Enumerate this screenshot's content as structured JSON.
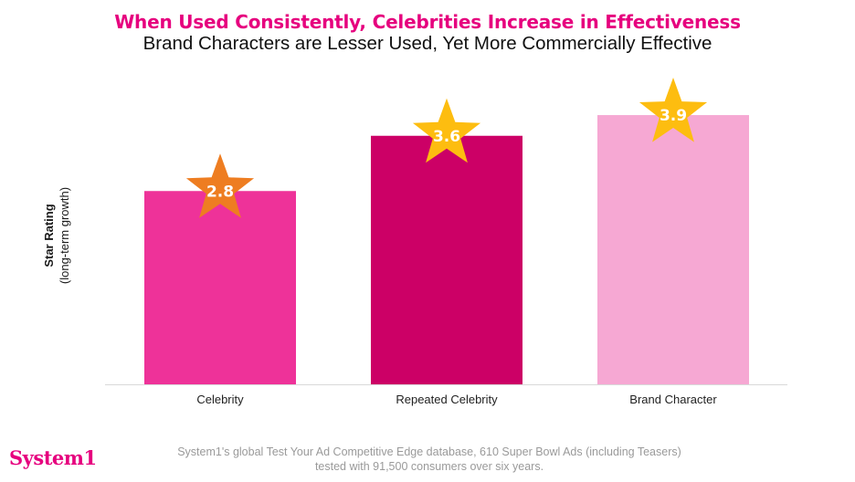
{
  "chart_data": {
    "type": "bar",
    "title": "When Used Consistently, Celebrities Increase in Effectiveness",
    "subtitle": "Brand Characters are Lesser Used, Yet More Commercially Effective",
    "ylabel_main": "Star Rating",
    "ylabel_sub": "(long-term growth)",
    "xlabel": "",
    "categories": [
      "Celebrity",
      "Repeated Celebrity",
      "Brand Character"
    ],
    "values": [
      2.8,
      3.6,
      3.9
    ],
    "data_labels": [
      "2.8",
      "3.6",
      "3.9"
    ],
    "bar_colors": [
      "#ee3299",
      "#cc0066",
      "#f6a8d3"
    ],
    "star_colors": [
      "#ee7d21",
      "#fdbd10",
      "#fdbd10"
    ],
    "ylim": [
      0,
      4.8
    ],
    "grid": false,
    "legend": "none"
  },
  "footer": {
    "brand": "System1",
    "source": "System1's global Test Your Ad Competitive Edge database, 610 Super Bowl Ads (including Teasers) tested with 91,500 consumers over six years."
  },
  "colors": {
    "title": "#e6007e",
    "brand": "#e6007e",
    "axis_line": "#d9d9d9",
    "source_text": "#9a9a9a"
  },
  "icons": [
    "star-icon"
  ]
}
